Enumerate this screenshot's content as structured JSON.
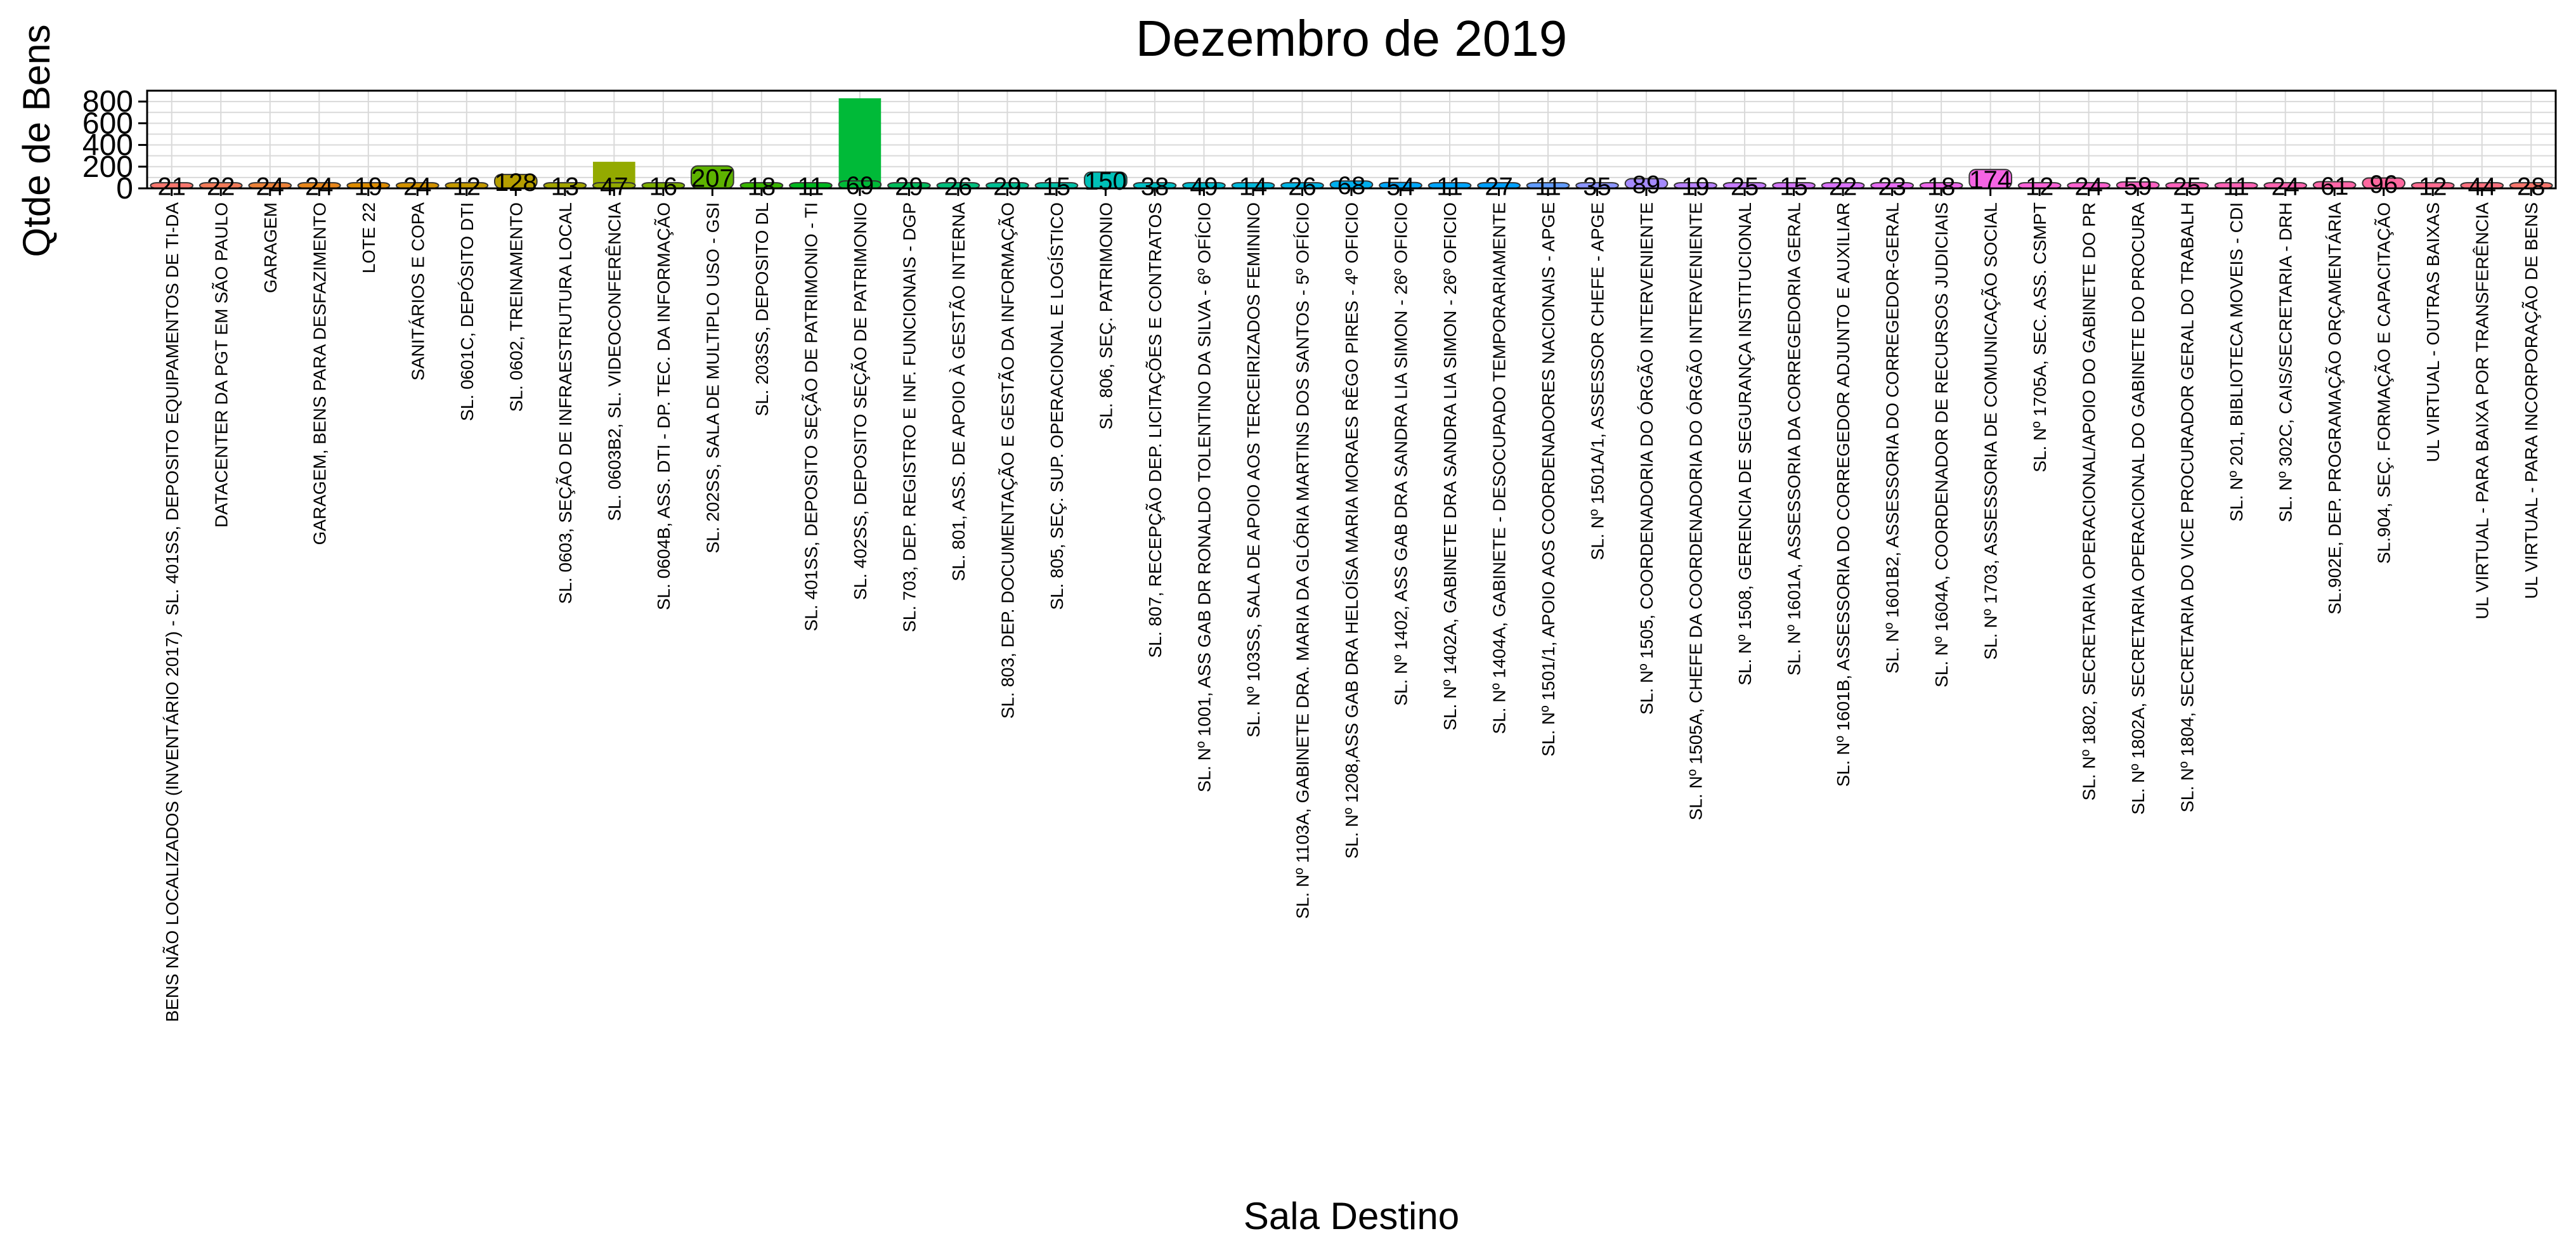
{
  "chart_data": {
    "type": "bar",
    "title": "Dezembro  de  2019",
    "xlabel": "Sala Destino",
    "ylabel": "Qtde de Bens",
    "ylim": [
      0,
      900
    ],
    "yticks": [
      0,
      200,
      400,
      600,
      800
    ],
    "grid": true,
    "legend": "none",
    "categories": [
      "BENS NÃO LOCALIZADOS (INVENTÁRIO 2017) - SL. 401SS, DEPOSITO EQUIPAMENTOS DE TI-DA",
      "DATACENTER DA PGT EM SÃO PAULO",
      "GARAGEM",
      "GARAGEM, BENS PARA DESFAZIMENTO",
      "LOTE 22",
      "SANITÁRIOS E COPA",
      "SL. 0601C, DEPÓSITO DTI",
      "SL. 0602, TREINAMENTO",
      "SL. 0603, SEÇÃO DE INFRAESTRUTURA LOCAL",
      "SL. 0603B2, SL. VIDEOCONFERÊNCIA",
      "SL. 0604B, ASS. DTI - DP. TEC. DA INFORMAÇÃO",
      "SL. 202SS, SALA DE MULTIPLO USO - GSI",
      "SL. 203SS, DEPOSITO DL",
      "SL. 401SS, DEPOSITO SEÇÃO DE PATRIMONIO - TI",
      "SL. 402SS, DEPOSITO SEÇÃO DE PATRIMONIO",
      "SL. 703, DEP. REGISTRO E INF. FUNCIONAIS - DGP",
      "SL. 801, ASS. DE APOIO À GESTÃO INTERNA",
      "SL. 803, DEP. DOCUMENTAÇÃO E GESTÃO DA INFORMAÇÃO",
      "SL. 805, SEÇ. SUP. OPERACIONAL E LOGÍSTICO",
      "SL. 806, SEÇ. PATRIMONIO",
      "SL. 807, RECEPÇÃO DEP. LICITAÇÕES E CONTRATOS",
      "SL. Nº 1001, ASS GAB DR RONALDO TOLENTINO DA SILVA - 6º OFÍCIO",
      "SL. Nº 103SS, SALA DE APOIO AOS TERCEIRIZADOS FEMININO",
      "SL. Nº 1103A, GABINETE DRA. MARIA DA GLÓRIA MARTINS DOS SANTOS - 5º OFÍCIO",
      "SL. Nº 1208,ASS GAB DRA HELOÍSA MARIA MORAES RÊGO PIRES - 4º OFICIO",
      "SL. Nº 1402, ASS GAB DRA SANDRA LIA SIMON - 26º OFICIO",
      "SL. Nº 1402A, GABINETE DRA SANDRA LIA SIMON - 26º OFICIO",
      "SL. Nº 1404A, GABINETE - DESOCUPADO TEMPORARIAMENTE",
      "SL. Nº 1501/1, APOIO AOS COORDENADORES NACIONAIS - APGE",
      "SL. Nº 1501A/1, ASSESSOR CHEFE - APGE",
      "SL. Nº 1505, COORDENADORIA DO ÓRGÃO INTERVENIENTE",
      "SL. Nº 1505A, CHEFE DA COORDENADORIA DO ÓRGÃO INTERVENIENTE",
      "SL. Nº 1508, GERENCIA DE SEGURANÇA INSTITUCIONAL",
      "SL. Nº 1601A, ASSESSORIA DA CORREGEDORIA GERAL",
      "SL. Nº 1601B, ASSESSORIA DO CORREGEDOR ADJUNTO E AUXILIAR",
      "SL. Nº 1601B2, ASSESSORIA DO CORREGEDOR-GERAL",
      "SL. Nº 1604A, COORDENADOR DE RECURSOS JUDICIAIS",
      "SL. Nº 1703, ASSESSORIA DE COMUNICAÇÃO SOCIAL",
      "SL. Nº 1705A, SEC. ASS. CSMPT",
      "SL. Nº 1802, SECRETARIA OPERACIONAL/APOIO DO GABINETE DO PR",
      "SL. Nº 1802A, SECRETARIA OPERACIONAL DO GABINETE DO PROCURA",
      "SL. Nº 1804, SECRETARIA DO VICE PROCURADOR GERAL DO TRABALH",
      "SL. Nº 201, BIBLIOTECA MOVEIS - CDI",
      "SL. Nº 302C, CAIS/SECRETARIA - DRH",
      "SL.902E, DEP. PROGRAMAÇÃO ORÇAMENTÁRIA",
      "SL.904, SEÇ. FORMAÇÃO E CAPACITAÇÃO",
      "UL VIRTUAL - OUTRAS BAIXAS",
      "UL VIRTUAL - PARA BAIXA POR TRANSFERÊNCIA",
      "UL VIRTUAL - PARA INCORPORAÇÃO DE BENS"
    ],
    "values": [
      21,
      22,
      24,
      24,
      19,
      24,
      12,
      128,
      13,
      47,
      16,
      207,
      18,
      11,
      69,
      29,
      26,
      29,
      15,
      150,
      38,
      49,
      14,
      26,
      68,
      54,
      11,
      27,
      11,
      35,
      89,
      19,
      25,
      15,
      22,
      23,
      18,
      174,
      12,
      24,
      59,
      25,
      11,
      24,
      61,
      96,
      12,
      44,
      28
    ],
    "labels": [
      "21",
      "22",
      "24",
      "24",
      "19",
      "24",
      "12",
      "128",
      "13",
      "47",
      "16",
      "207",
      "18",
      "11",
      "69",
      "29",
      "26",
      "29",
      "15",
      "150",
      "38",
      "49",
      "14",
      "26",
      "68",
      "54",
      "11",
      "27",
      "11",
      "35",
      "89",
      "19",
      "25",
      "15",
      "22",
      "23",
      "18",
      "174",
      "12",
      "24",
      "59",
      "25",
      "11",
      "24",
      "61",
      "96",
      "12",
      "44",
      "28"
    ],
    "stacked_extra": [
      {
        "index": 9,
        "value": 245
      },
      {
        "index": 14,
        "value": 830
      }
    ],
    "colors": [
      "#F8766D",
      "#F37B59",
      "#EC8239",
      "#E7861B",
      "#DE8C00",
      "#D29200",
      "#C49A00",
      "#B69F00",
      "#A3A500",
      "#93AA00",
      "#7CAE00",
      "#5EB300",
      "#39B600",
      "#00B81F",
      "#00BA38",
      "#00BD5C",
      "#00BF7D",
      "#00C094",
      "#00C1A7",
      "#00C0B8",
      "#00BFC4",
      "#00BDD0",
      "#00B9DC",
      "#00B5E6",
      "#00AFEF",
      "#00A8FF",
      "#00A5FF",
      "#00A0FF",
      "#619CFF",
      "#8C96FF",
      "#A58AFF",
      "#B983FF",
      "#C77CFF",
      "#D376F7",
      "#DB72FB",
      "#E76BF3",
      "#EF67EB",
      "#F564E3",
      "#FA62D8",
      "#FE61CF",
      "#FF61C3",
      "#FF62BC",
      "#FF63B6",
      "#FF64B0",
      "#FF66A8",
      "#FF689F",
      "#FF6C91",
      "#FC717F",
      "#F8766D"
    ]
  }
}
